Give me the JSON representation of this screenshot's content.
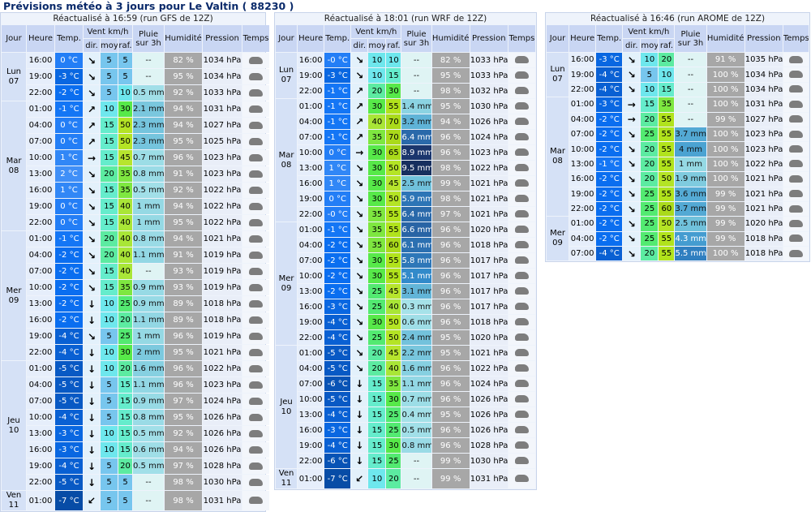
{
  "title": "Prévisions météo à 3 jours pour Le Valtin ( 88230 )",
  "columns": {
    "jour": "Jour",
    "heure": "Heure",
    "temp": "Temp.",
    "vent": "Vent km/h",
    "dir": "dir.",
    "moy": "moy.",
    "raf": "raf.",
    "pluie": "Pluie sur 3h",
    "humidite": "Humidité",
    "pression": "Pression",
    "temps": "Temps"
  },
  "panels": [
    {
      "subtitle": "Réactualisé à 16:59 (run GFS de 12Z)",
      "days": [
        {
          "day": "Lun",
          "date": "07",
          "rows": [
            [
              "16:00",
              "0 °C",
              "↘",
              "5",
              "5",
              "--",
              "82 %",
              "1034 hPa"
            ],
            [
              "19:00",
              "-3 °C",
              "↘",
              "5",
              "5",
              "--",
              "95 %",
              "1034 hPa"
            ],
            [
              "22:00",
              "-2 °C",
              "↘",
              "5",
              "10",
              "0.5 mm",
              "92 %",
              "1033 hPa"
            ]
          ]
        },
        {
          "day": "Mar",
          "date": "08",
          "rows": [
            [
              "01:00",
              "-1 °C",
              "↗",
              "10",
              "30",
              "2.1 mm",
              "94 %",
              "1031 hPa"
            ],
            [
              "04:00",
              "0 °C",
              "↗",
              "15",
              "50",
              "2.3 mm",
              "94 %",
              "1027 hPa"
            ],
            [
              "07:00",
              "0 °C",
              "↗",
              "15",
              "50",
              "2.3 mm",
              "95 %",
              "1025 hPa"
            ],
            [
              "10:00",
              "1 °C",
              "→",
              "15",
              "45",
              "0.7 mm",
              "96 %",
              "1023 hPa"
            ],
            [
              "13:00",
              "2 °C",
              "↘",
              "20",
              "35",
              "0.8 mm",
              "91 %",
              "1023 hPa"
            ],
            [
              "16:00",
              "1 °C",
              "↘",
              "15",
              "35",
              "0.5 mm",
              "92 %",
              "1022 hPa"
            ],
            [
              "19:00",
              "0 °C",
              "↘",
              "15",
              "40",
              "1 mm",
              "94 %",
              "1022 hPa"
            ],
            [
              "22:00",
              "0 °C",
              "↘",
              "15",
              "40",
              "1 mm",
              "95 %",
              "1022 hPa"
            ]
          ]
        },
        {
          "day": "Mer",
          "date": "09",
          "rows": [
            [
              "01:00",
              "-1 °C",
              "↘",
              "20",
              "40",
              "0.8 mm",
              "94 %",
              "1021 hPa"
            ],
            [
              "04:00",
              "-2 °C",
              "↘",
              "20",
              "40",
              "1.1 mm",
              "91 %",
              "1019 hPa"
            ],
            [
              "07:00",
              "-2 °C",
              "↘",
              "15",
              "40",
              "--",
              "93 %",
              "1019 hPa"
            ],
            [
              "10:00",
              "-2 °C",
              "↘",
              "15",
              "35",
              "0.9 mm",
              "93 %",
              "1019 hPa"
            ],
            [
              "13:00",
              "-2 °C",
              "↓",
              "10",
              "25",
              "0.9 mm",
              "89 %",
              "1018 hPa"
            ],
            [
              "16:00",
              "-2 °C",
              "↓",
              "10",
              "20",
              "1.1 mm",
              "89 %",
              "1018 hPa"
            ],
            [
              "19:00",
              "-4 °C",
              "↘",
              "5",
              "25",
              "1 mm",
              "96 %",
              "1019 hPa"
            ],
            [
              "22:00",
              "-4 °C",
              "↓",
              "10",
              "30",
              "2 mm",
              "95 %",
              "1021 hPa"
            ]
          ]
        },
        {
          "day": "Jeu",
          "date": "10",
          "rows": [
            [
              "01:00",
              "-5 °C",
              "↓",
              "10",
              "20",
              "1.6 mm",
              "96 %",
              "1022 hPa"
            ],
            [
              "04:00",
              "-5 °C",
              "↓",
              "5",
              "15",
              "1.1 mm",
              "96 %",
              "1023 hPa"
            ],
            [
              "07:00",
              "-5 °C",
              "↓",
              "5",
              "15",
              "0.9 mm",
              "97 %",
              "1024 hPa"
            ],
            [
              "10:00",
              "-4 °C",
              "↓",
              "5",
              "15",
              "0.8 mm",
              "95 %",
              "1026 hPa"
            ],
            [
              "13:00",
              "-3 °C",
              "↓",
              "10",
              "15",
              "0.5 mm",
              "92 %",
              "1026 hPa"
            ],
            [
              "16:00",
              "-3 °C",
              "↓",
              "10",
              "15",
              "0.6 mm",
              "94 %",
              "1026 hPa"
            ],
            [
              "19:00",
              "-4 °C",
              "↓",
              "5",
              "20",
              "0.5 mm",
              "97 %",
              "1028 hPa"
            ],
            [
              "22:00",
              "-5 °C",
              "↓",
              "5",
              "5",
              "--",
              "98 %",
              "1030 hPa"
            ]
          ]
        },
        {
          "day": "Ven",
          "date": "11",
          "rows": [
            [
              "01:00",
              "-7 °C",
              "↙",
              "5",
              "5",
              "--",
              "98 %",
              "1031 hPa"
            ]
          ]
        }
      ]
    },
    {
      "subtitle": "Réactualisé à 18:01 (run WRF de 12Z)",
      "days": [
        {
          "day": "Lun",
          "date": "07",
          "rows": [
            [
              "16:00",
              "-0 °C",
              "↘",
              "10",
              "10",
              "--",
              "82 %",
              "1033 hPa"
            ],
            [
              "19:00",
              "-3 °C",
              "↘",
              "10",
              "15",
              "--",
              "95 %",
              "1033 hPa"
            ],
            [
              "22:00",
              "-1 °C",
              "↗",
              "20",
              "30",
              "--",
              "98 %",
              "1032 hPa"
            ]
          ]
        },
        {
          "day": "Mar",
          "date": "08",
          "rows": [
            [
              "01:00",
              "-1 °C",
              "↗",
              "30",
              "55",
              "1.4 mm",
              "95 %",
              "1030 hPa"
            ],
            [
              "04:00",
              "-1 °C",
              "↗",
              "40",
              "70",
              "3.2 mm",
              "94 %",
              "1026 hPa"
            ],
            [
              "07:00",
              "-1 °C",
              "↗",
              "35",
              "70",
              "6.4 mm",
              "96 %",
              "1024 hPa"
            ],
            [
              "10:00",
              "0 °C",
              "→",
              "30",
              "65",
              "8.9 mm",
              "96 %",
              "1023 hPa"
            ],
            [
              "13:00",
              "1 °C",
              "↘",
              "30",
              "50",
              "9.5 mm",
              "98 %",
              "1022 hPa"
            ],
            [
              "16:00",
              "1 °C",
              "↘",
              "30",
              "45",
              "2.5 mm",
              "99 %",
              "1021 hPa"
            ],
            [
              "19:00",
              "0 °C",
              "↘",
              "30",
              "50",
              "5.9 mm",
              "98 %",
              "1021 hPa"
            ],
            [
              "22:00",
              "-0 °C",
              "↘",
              "35",
              "55",
              "6.4 mm",
              "97 %",
              "1021 hPa"
            ]
          ]
        },
        {
          "day": "Mer",
          "date": "09",
          "rows": [
            [
              "01:00",
              "-1 °C",
              "↘",
              "35",
              "55",
              "6.6 mm",
              "96 %",
              "1020 hPa"
            ],
            [
              "04:00",
              "-2 °C",
              "↘",
              "35",
              "60",
              "6.1 mm",
              "96 %",
              "1018 hPa"
            ],
            [
              "07:00",
              "-2 °C",
              "↘",
              "30",
              "55",
              "5.8 mm",
              "96 %",
              "1017 hPa"
            ],
            [
              "10:00",
              "-2 °C",
              "↘",
              "30",
              "55",
              "5.1 mm",
              "96 %",
              "1017 hPa"
            ],
            [
              "13:00",
              "-2 °C",
              "↘",
              "25",
              "45",
              "3.1 mm",
              "96 %",
              "1017 hPa"
            ],
            [
              "16:00",
              "-3 °C",
              "↘",
              "25",
              "40",
              "0.3 mm",
              "96 %",
              "1017 hPa"
            ],
            [
              "19:00",
              "-4 °C",
              "↘",
              "30",
              "50",
              "0.6 mm",
              "96 %",
              "1018 hPa"
            ],
            [
              "22:00",
              "-4 °C",
              "↘",
              "25",
              "50",
              "2.4 mm",
              "95 %",
              "1020 hPa"
            ]
          ]
        },
        {
          "day": "Jeu",
          "date": "10",
          "rows": [
            [
              "01:00",
              "-5 °C",
              "↘",
              "20",
              "45",
              "2.2 mm",
              "95 %",
              "1021 hPa"
            ],
            [
              "04:00",
              "-5 °C",
              "↘",
              "20",
              "40",
              "1.6 mm",
              "96 %",
              "1022 hPa"
            ],
            [
              "07:00",
              "-6 °C",
              "↓",
              "15",
              "35",
              "1.1 mm",
              "96 %",
              "1024 hPa"
            ],
            [
              "10:00",
              "-5 °C",
              "↓",
              "15",
              "30",
              "0.7 mm",
              "96 %",
              "1026 hPa"
            ],
            [
              "13:00",
              "-4 °C",
              "↓",
              "15",
              "25",
              "0.4 mm",
              "95 %",
              "1026 hPa"
            ],
            [
              "16:00",
              "-3 °C",
              "↓",
              "15",
              "25",
              "0.5 mm",
              "96 %",
              "1026 hPa"
            ],
            [
              "19:00",
              "-4 °C",
              "↓",
              "15",
              "30",
              "0.8 mm",
              "96 %",
              "1028 hPa"
            ],
            [
              "22:00",
              "-6 °C",
              "↓",
              "15",
              "25",
              "--",
              "99 %",
              "1030 hPa"
            ]
          ]
        },
        {
          "day": "Ven",
          "date": "11",
          "rows": [
            [
              "01:00",
              "-7 °C",
              "↙",
              "10",
              "20",
              "--",
              "99 %",
              "1031 hPa"
            ]
          ]
        }
      ]
    },
    {
      "subtitle": "Réactualisé à 16:46 (run AROME de 12Z)",
      "days": [
        {
          "day": "Lun",
          "date": "07",
          "rows": [
            [
              "16:00",
              "-3 °C",
              "↘",
              "10",
              "20",
              "--",
              "91 %",
              "1035 hPa"
            ],
            [
              "19:00",
              "-4 °C",
              "↘",
              "5",
              "10",
              "--",
              "100 %",
              "1034 hPa"
            ],
            [
              "22:00",
              "-4 °C",
              "↘",
              "10",
              "15",
              "--",
              "100 %",
              "1034 hPa"
            ]
          ]
        },
        {
          "day": "Mar",
          "date": "08",
          "rows": [
            [
              "01:00",
              "-3 °C",
              "→",
              "15",
              "35",
              "--",
              "100 %",
              "1031 hPa"
            ],
            [
              "04:00",
              "-2 °C",
              "→",
              "20",
              "55",
              "--",
              "99 %",
              "1027 hPa"
            ],
            [
              "07:00",
              "-2 °C",
              "↘",
              "25",
              "55",
              "3.7 mm",
              "100 %",
              "1023 hPa"
            ],
            [
              "10:00",
              "-2 °C",
              "↘",
              "20",
              "55",
              "4 mm",
              "100 %",
              "1023 hPa"
            ],
            [
              "13:00",
              "-1 °C",
              "↘",
              "20",
              "55",
              "1 mm",
              "100 %",
              "1022 hPa"
            ],
            [
              "16:00",
              "-2 °C",
              "↘",
              "20",
              "50",
              "1.9 mm",
              "100 %",
              "1021 hPa"
            ],
            [
              "19:00",
              "-2 °C",
              "↘",
              "25",
              "55",
              "3.6 mm",
              "99 %",
              "1021 hPa"
            ],
            [
              "22:00",
              "-2 °C",
              "↘",
              "25",
              "60",
              "3.7 mm",
              "99 %",
              "1021 hPa"
            ]
          ]
        },
        {
          "day": "Mer",
          "date": "09",
          "rows": [
            [
              "01:00",
              "-2 °C",
              "↘",
              "25",
              "50",
              "2.5 mm",
              "99 %",
              "1020 hPa"
            ],
            [
              "04:00",
              "-2 °C",
              "↘",
              "25",
              "55",
              "4.3 mm",
              "99 %",
              "1018 hPa"
            ],
            [
              "07:00",
              "-4 °C",
              "↘",
              "20",
              "55",
              "5.5 mm",
              "100 %",
              "1018 hPa"
            ]
          ]
        }
      ]
    }
  ]
}
